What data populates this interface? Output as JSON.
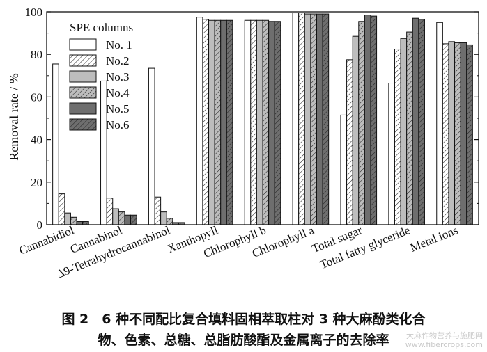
{
  "chart_data": {
    "type": "bar",
    "ylabel": "Removal rate / %",
    "ylim": [
      0,
      100
    ],
    "yticks": [
      0,
      20,
      40,
      60,
      80,
      100
    ],
    "grid": false,
    "legend_title": "SPE columns",
    "legend_position": "top-left",
    "categories": [
      "Cannabidiol",
      "Cannabinol",
      "Δ9-Tetrahydrocannabinol",
      "Xanthopyll",
      "Chlorophyll b",
      "Chlorophyll a",
      "Total sugar",
      "Total fatty glyceride",
      "Metal ions"
    ],
    "series": [
      {
        "name": "No. 1",
        "fill": "#ffffff",
        "hatch": false,
        "values": [
          75.5,
          67.5,
          73.5,
          97.5,
          96,
          99.5,
          51.5,
          66.5,
          95
        ]
      },
      {
        "name": "No.2",
        "fill": "#ffffff",
        "hatch": true,
        "values": [
          14.5,
          12.5,
          13,
          96.5,
          96,
          99.5,
          77.5,
          82.5,
          85
        ]
      },
      {
        "name": "No.3",
        "fill": "#bdbdbd",
        "hatch": false,
        "values": [
          5.5,
          7.5,
          6,
          96,
          96,
          99,
          88.5,
          87.5,
          86
        ]
      },
      {
        "name": "No.4",
        "fill": "#bdbdbd",
        "hatch": true,
        "values": [
          3.5,
          6,
          3,
          96,
          96,
          99,
          95.5,
          90.5,
          85.5
        ]
      },
      {
        "name": "No.5",
        "fill": "#6e6e6e",
        "hatch": false,
        "values": [
          1.5,
          4.5,
          1,
          96,
          95.5,
          99,
          98.5,
          97,
          85.5
        ]
      },
      {
        "name": "No.6",
        "fill": "#6e6e6e",
        "hatch": true,
        "values": [
          1.5,
          4.5,
          1,
          96,
          95.5,
          99,
          98,
          96.5,
          84.5
        ]
      }
    ]
  },
  "caption": {
    "line1": "图 2　6 种不同配比复合填料固相萃取柱对 3 种大麻酚类化合",
    "line2": "物、色素、总糖、总脂肪酸酯及金属离子的去除率"
  },
  "watermark": {
    "line1": "大麻作物营养与施肥网",
    "line2": "www.fibercrops.com"
  }
}
